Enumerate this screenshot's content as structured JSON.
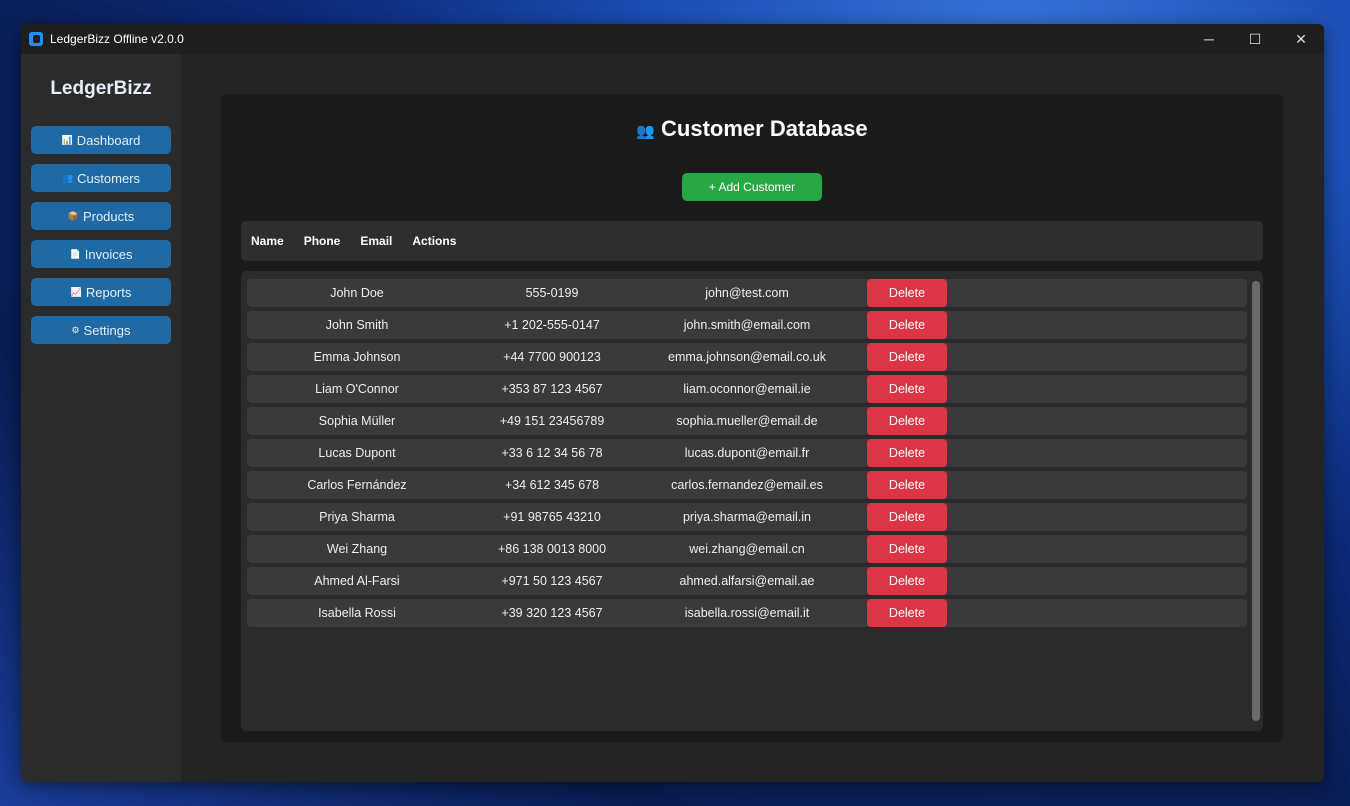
{
  "window": {
    "title": "LedgerBizz Offline v2.0.0",
    "controls": {
      "minimize": "─",
      "maximize": "☐",
      "close": "✕"
    }
  },
  "sidebar": {
    "brand": "LedgerBizz",
    "items": [
      {
        "label": "Dashboard",
        "icon": "bar-chart-icon",
        "glyph": "📊"
      },
      {
        "label": "Customers",
        "icon": "users-icon",
        "glyph": "👥"
      },
      {
        "label": "Products",
        "icon": "box-icon",
        "glyph": "📦"
      },
      {
        "label": "Invoices",
        "icon": "document-icon",
        "glyph": "📄"
      },
      {
        "label": "Reports",
        "icon": "chart-icon",
        "glyph": "📈"
      },
      {
        "label": "Settings",
        "icon": "gear-icon",
        "glyph": "⚙"
      }
    ]
  },
  "main": {
    "title": "Customer Database",
    "title_icon": "👥",
    "add_label": "+ Add Customer",
    "columns": [
      "Name",
      "Phone",
      "Email",
      "Actions"
    ],
    "delete_label": "Delete",
    "rows": [
      [
        "John Doe",
        "555-0199",
        "john@test.com"
      ],
      [
        "John Smith",
        "+1 202-555-0147",
        "john.smith@email.com"
      ],
      [
        "Emma Johnson",
        "+44 7700 900123",
        "emma.johnson@email.co.uk"
      ],
      [
        "Liam O'Connor",
        "+353 87 123 4567",
        "liam.oconnor@email.ie"
      ],
      [
        "Sophia Müller",
        "+49 151 23456789",
        "sophia.mueller@email.de"
      ],
      [
        "Lucas Dupont",
        "+33 6 12 34 56 78",
        "lucas.dupont@email.fr"
      ],
      [
        "Carlos Fernández",
        "+34 612 345 678",
        "carlos.fernandez@email.es"
      ],
      [
        "Priya Sharma",
        "+91 98765 43210",
        "priya.sharma@email.in"
      ],
      [
        "Wei Zhang",
        "+86 138 0013 8000",
        "wei.zhang@email.cn"
      ],
      [
        "Ahmed Al-Farsi",
        "+971 50 123 4567",
        "ahmed.alfarsi@email.ae"
      ],
      [
        "Isabella Rossi",
        "+39 320 123 4567",
        "isabella.rossi@email.it"
      ]
    ]
  },
  "colors": {
    "accent": "#1f6aa5",
    "add": "#28a745",
    "delete": "#dc3545"
  }
}
